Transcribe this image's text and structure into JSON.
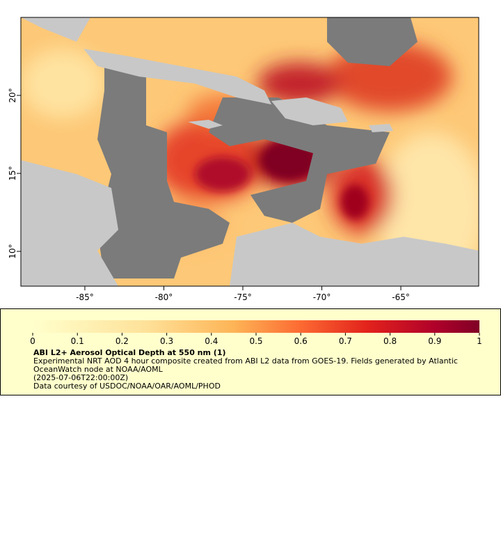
{
  "map": {
    "xaxis": {
      "lim": [
        -89.05,
        -60.07
      ],
      "ticks": [
        {
          "value": -85,
          "label": "-85°"
        },
        {
          "value": -80,
          "label": "-80°"
        },
        {
          "value": -75,
          "label": "-75°"
        },
        {
          "value": -70,
          "label": "-70°"
        },
        {
          "value": -65,
          "label": "-65°"
        }
      ]
    },
    "yaxis": {
      "lim": [
        7.77,
        25
      ],
      "ticks": [
        {
          "value": 10,
          "label": "10°"
        },
        {
          "value": 15,
          "label": "15°"
        },
        {
          "value": 20,
          "label": "20°"
        }
      ]
    }
  },
  "colorbar": {
    "lim": [
      0,
      1
    ],
    "ticks": [
      0,
      0.1,
      0.2,
      0.3,
      0.4,
      0.5,
      0.6,
      0.7,
      0.8,
      0.9,
      1
    ]
  },
  "legend": {
    "title": "ABI L2+ Aerosol Optical Depth at 550 nm (1)",
    "description": "Experimental NRT AOD 4 hour composite created from ABI L2 data from GOES-19. Fields generated by Atlantic OceanWatch node at NOAA/AOML",
    "time": "(2025-07-06T22:00:00Z)",
    "credit": "Data courtesy of USDOC/NOAA/OAR/AOML/PHOD"
  }
}
